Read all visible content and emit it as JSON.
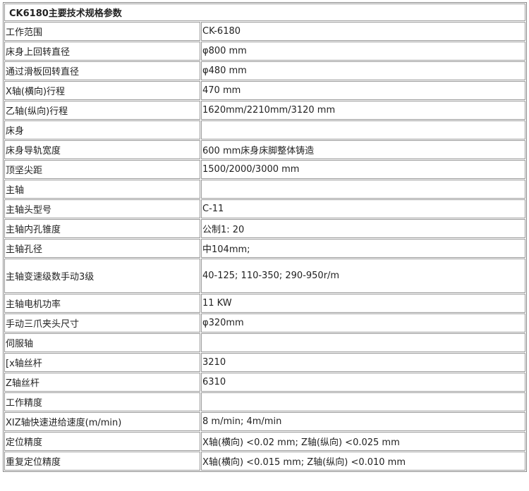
{
  "title": "CK6180主要技术规格参数",
  "rows": [
    {
      "label": "工作范围",
      "value": "CK-6180"
    },
    {
      "label": "床身上回转直径",
      "value": "φ800 mm"
    },
    {
      "label": "通过滑板回转直径",
      "value": "φ480 mm"
    },
    {
      "label": "X轴(横向)行程",
      "value": "470 mm"
    },
    {
      "label": "乙轴(纵向)行程",
      "value": "1620mm/2210mm/3120 mm"
    },
    {
      "label": "床身",
      "value": ""
    },
    {
      "label": "床身导轨宽度",
      "value": "600 mm床身床脚整体铸造"
    },
    {
      "label": "顶坚尖距",
      "value": "1500/2000/3000 mm"
    },
    {
      "label": "主轴",
      "value": ""
    },
    {
      "label": "主轴头型号",
      "value": "C-11"
    },
    {
      "label": "主轴内孔锥度",
      "value": "公制1: 20"
    },
    {
      "label": "主轴孔径",
      "value": "中104mm;"
    },
    {
      "label": "主轴变速级数手动3级",
      "value": "40-125; 110-350; 290-950r/m"
    },
    {
      "label": "主轴电机功率",
      "value": "11 KW"
    },
    {
      "label": "手动三爪夹头尺寸",
      "value": "φ320mm"
    },
    {
      "label": "伺服轴",
      "value": ""
    },
    {
      "label": "[x轴丝杆",
      "value": "3210"
    },
    {
      "label": "Z轴丝杆",
      "value": "6310"
    },
    {
      "label": "工作精度",
      "value": ""
    },
    {
      "label": "XIZ轴快速进给速度(m/min)",
      "value": "8 m/min; 4m/min"
    },
    {
      "label": "定位精度",
      "value": "X轴(横向) <0.02 mm; Z轴(纵向) <0.025 mm"
    },
    {
      "label": "重复定位精度",
      "value": "X轴(横向) <0.015 mm; Z轴(纵向) <0.010 mm"
    }
  ]
}
